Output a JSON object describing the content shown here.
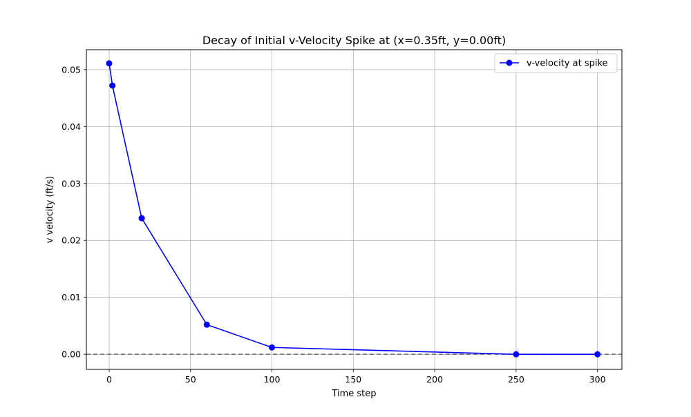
{
  "chart_data": {
    "type": "line",
    "title": "Decay of Initial v-Velocity Spike at (x=0.35ft, y=0.00ft)",
    "xlabel": "Time step",
    "ylabel": "v velocity (ft/s)",
    "xlim": [
      -14,
      315
    ],
    "ylim": [
      -0.00265,
      0.0535
    ],
    "xticks": [
      0,
      50,
      100,
      150,
      200,
      250,
      300
    ],
    "xtick_labels": [
      "0",
      "50",
      "100",
      "150",
      "200",
      "250",
      "300"
    ],
    "yticks": [
      0.0,
      0.01,
      0.02,
      0.03,
      0.04,
      0.05
    ],
    "ytick_labels": [
      "0.00",
      "0.01",
      "0.02",
      "0.03",
      "0.04",
      "0.05"
    ],
    "grid": true,
    "legend_position": "top-right",
    "reference_line": {
      "y": 0.0,
      "style": "dashed",
      "color": "#666666"
    },
    "series": [
      {
        "name": "v-velocity at spike",
        "color": "#0000ff",
        "marker": "circle",
        "x": [
          0,
          2,
          20,
          60,
          100,
          250,
          300
        ],
        "y": [
          0.0511,
          0.0472,
          0.0239,
          0.0052,
          0.0012,
          0.0,
          0.0
        ]
      }
    ]
  }
}
